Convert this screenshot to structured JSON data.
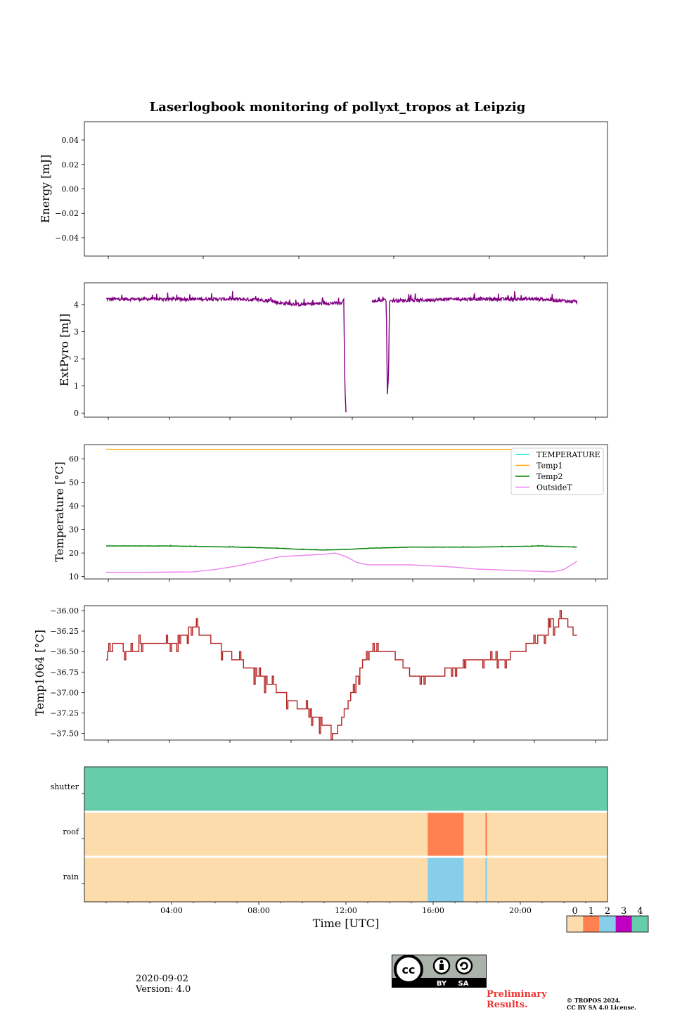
{
  "title": "Laserlogbook monitoring of pollyxt_tropos at Leipzig",
  "footer": {
    "date": "2020-09-02",
    "version": "Version: 4.0",
    "preliminary": "Preliminary Results.",
    "copyright_line1": "© TROPOS 2024.",
    "copyright_line2": "CC BY SA 4.0 License.",
    "cc_labels": [
      "BY",
      "SA"
    ]
  },
  "colors": {
    "extpyro": "#800080",
    "temperature": "#00e5ee",
    "temp1": "#ffa500",
    "temp2": "#008000",
    "outsideT": "#ee82ee",
    "temp1064": "#b22222"
  },
  "chart_data": [
    {
      "type": "line",
      "name": "energy",
      "ylabel": "Energy [mJ]",
      "ylim": [
        -0.055,
        0.055
      ],
      "yticks": [
        0.04,
        0.02,
        0.0,
        -0.02,
        -0.04
      ],
      "ytick_labels": [
        "0.04",
        "0.02",
        "0.00",
        "−0.02",
        "−0.04"
      ],
      "xlim": [
        0,
        24
      ],
      "series": []
    },
    {
      "type": "line",
      "name": "extpyro",
      "ylabel": "ExtPyro [mJ]",
      "ylim": [
        -0.15,
        4.8
      ],
      "yticks": [
        0,
        1,
        2,
        3,
        4
      ],
      "ytick_labels": [
        "0",
        "1",
        "2",
        "3",
        "4"
      ],
      "xlim": [
        0,
        24
      ],
      "series": [
        {
          "name": "ExtPyro",
          "color": "#800080",
          "noisy": true,
          "x": [
            1.0,
            3.0,
            5.0,
            7.0,
            8.5,
            9.0,
            10.0,
            11.0,
            11.8,
            11.9,
            11.95,
            12.0,
            12.05
          ],
          "y": [
            4.2,
            4.2,
            4.2,
            4.2,
            4.15,
            4.05,
            4.0,
            4.05,
            4.05,
            4.2,
            1.0,
            0.05,
            0.05
          ]
        },
        {
          "name": "ExtPyro",
          "color": "#800080",
          "noisy": true,
          "x": [
            13.2,
            13.5,
            13.8,
            13.85,
            13.9,
            13.95,
            14.0,
            14.05,
            15.0,
            17.0,
            19.0,
            21.0,
            22.6
          ],
          "y": [
            4.1,
            4.15,
            4.2,
            4.1,
            0.7,
            1.3,
            4.1,
            4.15,
            4.15,
            4.2,
            4.2,
            4.2,
            4.1
          ]
        }
      ]
    },
    {
      "type": "line",
      "name": "temperature",
      "ylabel": "Temperature [°C]",
      "ylim": [
        9,
        66
      ],
      "yticks": [
        10,
        20,
        30,
        40,
        50,
        60
      ],
      "ytick_labels": [
        "10",
        "20",
        "30",
        "40",
        "50",
        "60"
      ],
      "xlim": [
        0,
        24
      ],
      "legend": [
        "TEMPERATURE",
        "Temp1",
        "Temp2",
        "OutsideT"
      ],
      "legend_position": "top-right",
      "series": [
        {
          "name": "TEMPERATURE",
          "color": "#00e5ee",
          "x": [],
          "y": []
        },
        {
          "name": "Temp1",
          "color": "#ffa500",
          "x": [
            1.0,
            22.6
          ],
          "y": [
            64,
            64
          ]
        },
        {
          "name": "Temp2",
          "color": "#008000",
          "noisy": true,
          "x": [
            1.0,
            4.0,
            7.0,
            9.0,
            10.0,
            11.0,
            12.0,
            13.0,
            15.0,
            18.0,
            21.0,
            22.6
          ],
          "y": [
            23,
            23,
            22.5,
            22,
            21.5,
            21.3,
            21.5,
            22,
            22.5,
            22.5,
            23,
            22.5
          ]
        },
        {
          "name": "OutsideT",
          "color": "#ee82ee",
          "x": [
            1.0,
            3.0,
            5.0,
            6.0,
            7.0,
            8.0,
            9.0,
            10.0,
            11.0,
            11.5,
            12.0,
            12.5,
            13.0,
            15.0,
            17.0,
            18.0,
            20.0,
            21.5,
            22.0,
            22.6
          ],
          "y": [
            11.8,
            11.8,
            12,
            13,
            14.5,
            16.5,
            18.5,
            19,
            19.5,
            20,
            18.5,
            16,
            15,
            15,
            14,
            13.2,
            12.5,
            12,
            13,
            16.5
          ]
        }
      ]
    },
    {
      "type": "line",
      "name": "temp1064",
      "ylabel": "Temp1064 [°C]",
      "ylim": [
        -37.58,
        -35.94
      ],
      "yticks": [
        -36.0,
        -36.25,
        -36.5,
        -36.75,
        -37.0,
        -37.25,
        -37.5
      ],
      "ytick_labels": [
        "−36.00",
        "−36.25",
        "−36.50",
        "−36.75",
        "−37.00",
        "−37.25",
        "−37.50"
      ],
      "xlim": [
        0,
        24
      ],
      "series": [
        {
          "name": "Temp1064",
          "color": "#b22222",
          "step": 0.1,
          "x": [
            1.0,
            1.5,
            2.0,
            3.0,
            4.0,
            4.5,
            5.0,
            5.5,
            6.0,
            7.0,
            8.0,
            9.0,
            10.0,
            11.0,
            11.5,
            12.0,
            12.5,
            13.0,
            14.0,
            14.5,
            15.0,
            16.0,
            17.0,
            18.0,
            19.0,
            20.0,
            20.5,
            21.0,
            21.5,
            22.0,
            22.6
          ],
          "y": [
            -36.5,
            -36.4,
            -36.5,
            -36.4,
            -36.4,
            -36.3,
            -36.2,
            -36.3,
            -36.4,
            -36.6,
            -36.8,
            -37.0,
            -37.2,
            -37.4,
            -37.5,
            -37.2,
            -36.8,
            -36.5,
            -36.5,
            -36.6,
            -36.8,
            -36.8,
            -36.7,
            -36.6,
            -36.6,
            -36.5,
            -36.4,
            -36.3,
            -36.2,
            -36.1,
            -36.3
          ]
        }
      ]
    },
    {
      "type": "heatmap",
      "name": "status",
      "rows": [
        "shutter",
        "roof",
        "rain"
      ],
      "xlabel": "Time [UTC]",
      "xlim": [
        0,
        24
      ],
      "xticks": [
        4,
        8,
        12,
        16,
        20
      ],
      "xtick_labels": [
        "04:00",
        "08:00",
        "12:00",
        "16:00",
        "20:00"
      ],
      "segments": [
        {
          "row": "shutter",
          "from": 0,
          "to": 24,
          "value": 4
        },
        {
          "row": "roof",
          "from": 0,
          "to": 15.75,
          "value": 0
        },
        {
          "row": "roof",
          "from": 15.75,
          "to": 17.4,
          "value": 1
        },
        {
          "row": "roof",
          "from": 17.4,
          "to": 18.4,
          "value": 0
        },
        {
          "row": "roof",
          "from": 18.4,
          "to": 18.48,
          "value": 1
        },
        {
          "row": "roof",
          "from": 18.48,
          "to": 24,
          "value": 0
        },
        {
          "row": "rain",
          "from": 0,
          "to": 15.75,
          "value": 0
        },
        {
          "row": "rain",
          "from": 15.75,
          "to": 17.4,
          "value": 2
        },
        {
          "row": "rain",
          "from": 17.4,
          "to": 18.4,
          "value": 0
        },
        {
          "row": "rain",
          "from": 18.4,
          "to": 18.48,
          "value": 2
        },
        {
          "row": "rain",
          "from": 18.48,
          "to": 24,
          "value": 0
        }
      ],
      "colorbar": {
        "labels": [
          "0",
          "1",
          "2",
          "3",
          "4"
        ],
        "colors": [
          "#fcdcaa",
          "#ff8050",
          "#87ceeb",
          "#c000c0",
          "#66cdaa"
        ]
      }
    }
  ]
}
